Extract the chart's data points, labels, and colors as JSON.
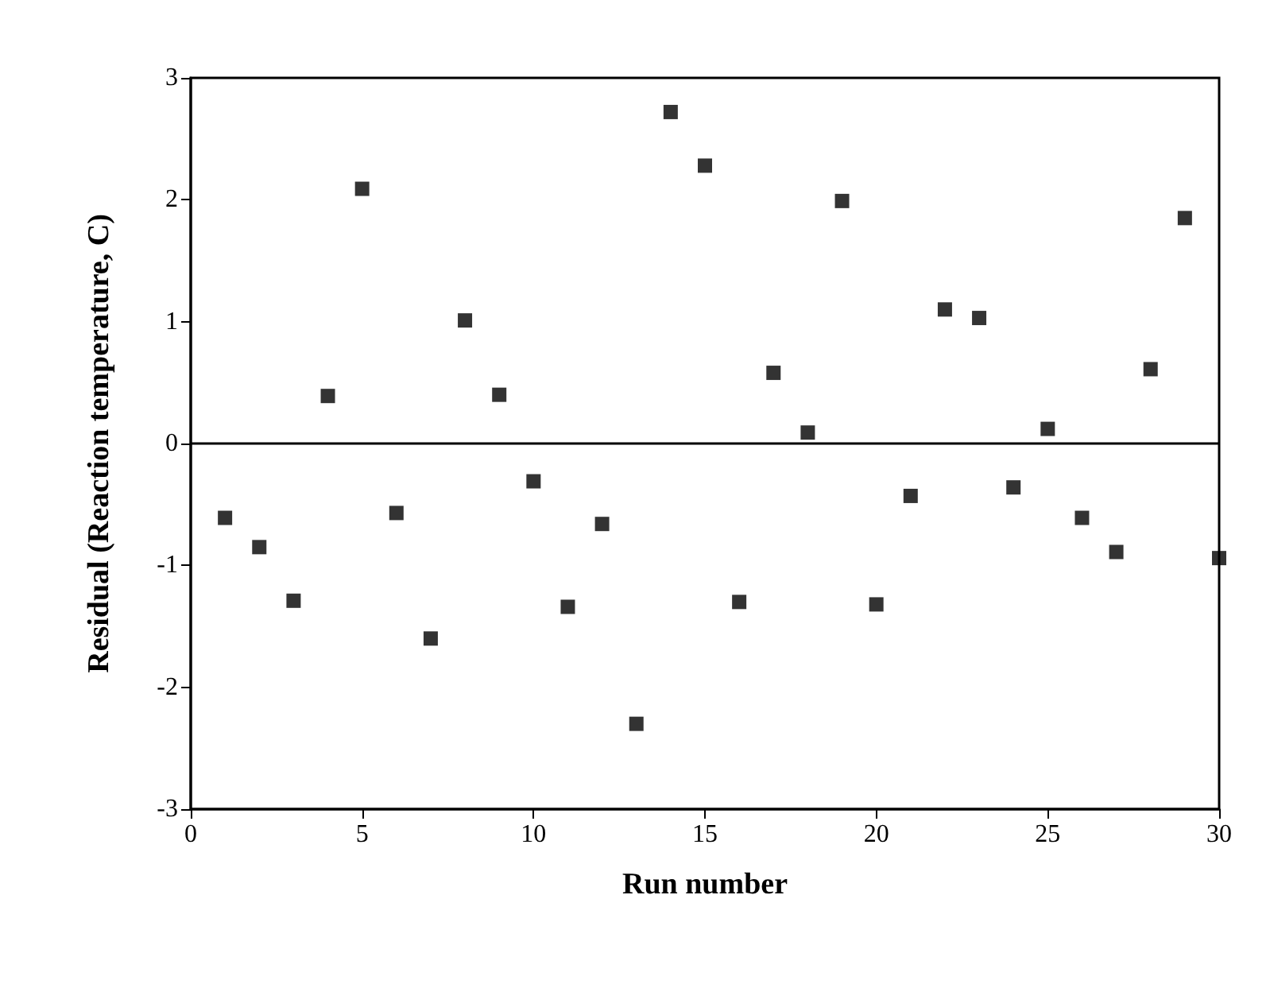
{
  "chart_data": {
    "type": "scatter",
    "xlabel": "Run number",
    "ylabel": "Residual (Reaction temperature, C)",
    "x": [
      1,
      2,
      3,
      4,
      5,
      6,
      7,
      8,
      9,
      10,
      11,
      12,
      13,
      14,
      15,
      16,
      17,
      18,
      19,
      20,
      21,
      22,
      23,
      24,
      25,
      26,
      27,
      28,
      29,
      30
    ],
    "series": [
      {
        "color": "#000000",
        "values": [
          -0.61,
          -0.85,
          -1.29,
          0.39,
          2.09,
          -0.57,
          -1.6,
          1.01,
          0.4,
          -0.31,
          -1.34,
          -0.66,
          -2.3,
          2.72,
          2.28,
          -1.3,
          0.58,
          0.09,
          1.99,
          -1.32,
          -0.43,
          1.1,
          1.03,
          -0.36,
          0.12,
          -0.61,
          -0.89,
          0.61,
          1.85,
          -0.94
        ]
      }
    ],
    "xlim": [
      0,
      30
    ],
    "xticks": [
      0,
      5,
      10,
      15,
      20,
      25,
      30
    ],
    "ylim": [
      -3,
      3
    ],
    "yticks": [
      -3,
      -2,
      -1,
      0,
      1,
      2,
      3
    ],
    "ref_lines": [
      {
        "axis": "y",
        "value": 0,
        "color": "#000000"
      }
    ],
    "marker": "square",
    "grid": false
  }
}
